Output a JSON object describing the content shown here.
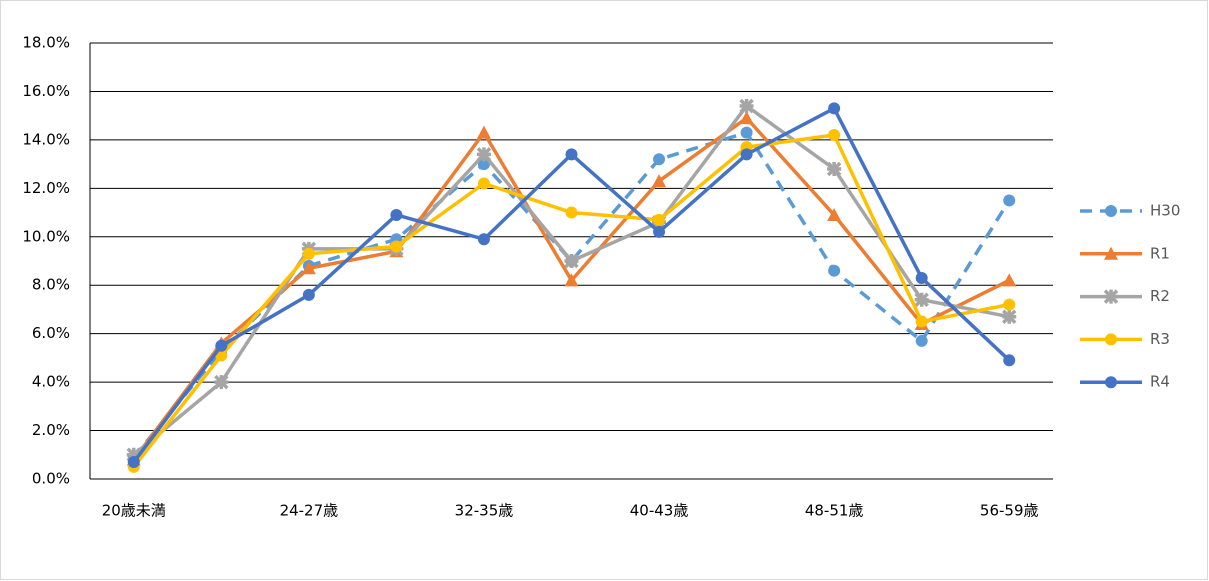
{
  "chart_data": {
    "type": "line",
    "categories": [
      "20歳未満",
      null,
      "24-27歳",
      null,
      "32-35歳",
      null,
      "40-43歳",
      null,
      "48-51歳",
      null,
      "56-59歳"
    ],
    "series": [
      {
        "name": "H30",
        "color": "#5B9BD5",
        "dashed": true,
        "marker": "circle",
        "values": [
          0.9,
          5.3,
          8.8,
          9.9,
          13.0,
          9.0,
          13.2,
          14.3,
          8.6,
          5.7,
          11.5
        ]
      },
      {
        "name": "R1",
        "color": "#ED7D31",
        "dashed": false,
        "marker": "triangle",
        "values": [
          0.8,
          5.6,
          8.7,
          9.4,
          14.3,
          8.2,
          12.3,
          14.9,
          10.9,
          6.4,
          8.2
        ]
      },
      {
        "name": "R2",
        "color": "#A5A5A5",
        "dashed": false,
        "marker": "star",
        "values": [
          1.0,
          4.0,
          9.5,
          9.5,
          13.4,
          9.0,
          10.6,
          15.4,
          12.8,
          7.4,
          6.7
        ]
      },
      {
        "name": "R3",
        "color": "#FFC000",
        "dashed": false,
        "marker": "circle",
        "values": [
          0.5,
          5.1,
          9.3,
          9.6,
          12.2,
          11.0,
          10.7,
          13.7,
          14.2,
          6.5,
          7.2
        ]
      },
      {
        "name": "R4",
        "color": "#4472C4",
        "dashed": false,
        "marker": "circle",
        "values": [
          0.7,
          5.5,
          7.6,
          10.9,
          9.9,
          13.4,
          10.2,
          13.4,
          15.3,
          8.3,
          4.9
        ]
      }
    ],
    "ylim": [
      0,
      18
    ],
    "yticks": [
      {
        "value": 0,
        "label": "0.0%"
      },
      {
        "value": 2,
        "label": "2.0%"
      },
      {
        "value": 4,
        "label": "4.0%"
      },
      {
        "value": 6,
        "label": "6.0%"
      },
      {
        "value": 8,
        "label": "8.0%"
      },
      {
        "value": 10,
        "label": "10.0%"
      },
      {
        "value": 12,
        "label": "12.0%"
      },
      {
        "value": 14,
        "label": "14.0%"
      },
      {
        "value": 16,
        "label": "16.0%"
      },
      {
        "value": 18,
        "label": "18.0%"
      }
    ],
    "grid": true,
    "legend": "right"
  }
}
